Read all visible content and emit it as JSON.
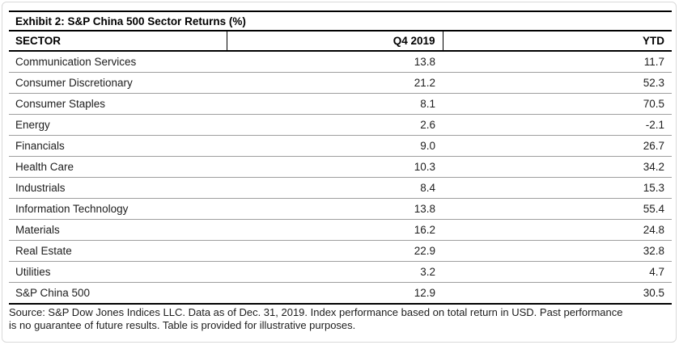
{
  "table": {
    "title": "Exhibit 2: S&P China 500 Sector Returns (%)",
    "columns": [
      "SECTOR",
      "Q4 2019",
      "YTD"
    ],
    "rows": [
      {
        "sector": "Communication Services",
        "q4_2019": "13.8",
        "ytd": "11.7"
      },
      {
        "sector": "Consumer Discretionary",
        "q4_2019": "21.2",
        "ytd": "52.3"
      },
      {
        "sector": "Consumer Staples",
        "q4_2019": "8.1",
        "ytd": "70.5"
      },
      {
        "sector": "Energy",
        "q4_2019": "2.6",
        "ytd": "-2.1"
      },
      {
        "sector": "Financials",
        "q4_2019": "9.0",
        "ytd": "26.7"
      },
      {
        "sector": "Health Care",
        "q4_2019": "10.3",
        "ytd": "34.2"
      },
      {
        "sector": "Industrials",
        "q4_2019": "8.4",
        "ytd": "15.3"
      },
      {
        "sector": "Information Technology",
        "q4_2019": "13.8",
        "ytd": "55.4"
      },
      {
        "sector": "Materials",
        "q4_2019": "16.2",
        "ytd": "24.8"
      },
      {
        "sector": "Real Estate",
        "q4_2019": "22.9",
        "ytd": "32.8"
      },
      {
        "sector": "Utilities",
        "q4_2019": "3.2",
        "ytd": "4.7"
      },
      {
        "sector": "S&P China 500",
        "q4_2019": "12.9",
        "ytd": "30.5"
      }
    ]
  },
  "footer": {
    "line1": "Source: S&P Dow Jones Indices LLC. Data as of Dec. 31, 2019. Index performance based on total return in USD. Past performance",
    "line2": "is no guarantee of future results. Table is provided for illustrative purposes."
  },
  "colors": {
    "thick_rule": "#000000",
    "row_divider": "#9e9e9e",
    "text": "#1d1d1d",
    "card_border": "#d9d9d9",
    "background": "#ffffff"
  },
  "chart_data": {
    "type": "table",
    "title": "Exhibit 2: S&P China 500 Sector Returns (%)",
    "columns": [
      "SECTOR",
      "Q4 2019",
      "YTD"
    ],
    "rows": [
      [
        "Communication Services",
        13.8,
        11.7
      ],
      [
        "Consumer Discretionary",
        21.2,
        52.3
      ],
      [
        "Consumer Staples",
        8.1,
        70.5
      ],
      [
        "Energy",
        2.6,
        -2.1
      ],
      [
        "Financials",
        9.0,
        26.7
      ],
      [
        "Health Care",
        10.3,
        34.2
      ],
      [
        "Industrials",
        8.4,
        15.3
      ],
      [
        "Information Technology",
        13.8,
        55.4
      ],
      [
        "Materials",
        16.2,
        24.8
      ],
      [
        "Real Estate",
        22.9,
        32.8
      ],
      [
        "Utilities",
        3.2,
        4.7
      ],
      [
        "S&P China 500",
        12.9,
        30.5
      ]
    ],
    "footnote": "Source: S&P Dow Jones Indices LLC. Data as of Dec. 31, 2019. Index performance based on total return in USD. Past performance is no guarantee of future results. Table is provided for illustrative purposes."
  }
}
